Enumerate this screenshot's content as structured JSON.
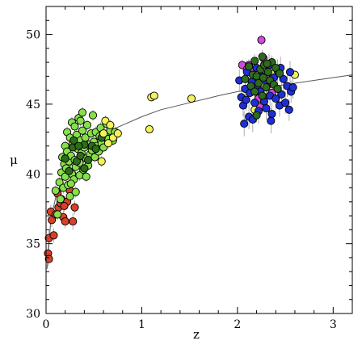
{
  "chart_data": {
    "type": "scatter",
    "title": "",
    "xlabel": "z",
    "ylabel": "μ",
    "xlim": [
      0,
      3.2
    ],
    "ylim": [
      30,
      52
    ],
    "xticks": [
      0,
      1,
      2,
      3
    ],
    "yticks": [
      30,
      35,
      40,
      45,
      50
    ],
    "grid": false,
    "colors": {
      "red": "#d9402a",
      "green": "#86e04a",
      "darkgreen": "#2e6b1a",
      "yellow": "#f2f25a",
      "blue": "#1f2fd6",
      "magenta": "#d14ae0",
      "errorbar": "#9a9a9a",
      "curve": "#555555"
    },
    "curve": {
      "type": "distance-modulus model",
      "x": [
        0.01,
        0.05,
        0.1,
        0.2,
        0.3,
        0.4,
        0.5,
        0.6,
        0.7,
        0.8,
        1.0,
        1.2,
        1.5,
        1.8,
        2.0,
        2.2,
        2.5,
        2.8,
        3.2
      ],
      "y": [
        33.2,
        36.7,
        38.3,
        40.0,
        41.0,
        41.7,
        42.3,
        42.8,
        43.2,
        43.5,
        44.1,
        44.6,
        45.1,
        45.6,
        45.9,
        46.1,
        46.4,
        46.7,
        47.1
      ]
    },
    "series": [
      {
        "color_key": "red",
        "points": [
          [
            0.02,
            34.3,
            0.6
          ],
          [
            0.03,
            33.9,
            0.5
          ],
          [
            0.03,
            35.4,
            0.6
          ],
          [
            0.05,
            37.3,
            0.5
          ],
          [
            0.06,
            36.7,
            0.5
          ],
          [
            0.08,
            35.6,
            0.5
          ],
          [
            0.1,
            37.1,
            0.5
          ],
          [
            0.12,
            38.6,
            0.4
          ],
          [
            0.13,
            37.6,
            0.5
          ],
          [
            0.15,
            37.9,
            0.5
          ],
          [
            0.16,
            38.2,
            0.4
          ],
          [
            0.18,
            36.9,
            0.5
          ],
          [
            0.2,
            36.6,
            0.5
          ],
          [
            0.22,
            38.0,
            0.4
          ],
          [
            0.25,
            38.8,
            0.4
          ],
          [
            0.28,
            36.6,
            0.6
          ],
          [
            0.3,
            37.6,
            0.5
          ],
          [
            0.19,
            37.7,
            0.4
          ]
        ]
      },
      {
        "color_key": "green",
        "points": [
          [
            0.1,
            38.8,
            0.4
          ],
          [
            0.12,
            37.1,
            0.4
          ],
          [
            0.14,
            39.4,
            0.4
          ],
          [
            0.15,
            38.2,
            0.4
          ],
          [
            0.16,
            40.1,
            0.4
          ],
          [
            0.17,
            41.2,
            0.4
          ],
          [
            0.18,
            39.0,
            0.4
          ],
          [
            0.19,
            40.7,
            0.4
          ],
          [
            0.2,
            42.0,
            0.4
          ],
          [
            0.2,
            39.8,
            0.4
          ],
          [
            0.21,
            40.4,
            0.4
          ],
          [
            0.22,
            41.6,
            0.4
          ],
          [
            0.22,
            43.0,
            0.4
          ],
          [
            0.23,
            39.2,
            0.4
          ],
          [
            0.24,
            40.9,
            0.4
          ],
          [
            0.25,
            42.6,
            0.4
          ],
          [
            0.25,
            38.4,
            0.4
          ],
          [
            0.26,
            41.3,
            0.4
          ],
          [
            0.27,
            43.7,
            0.4
          ],
          [
            0.27,
            40.0,
            0.4
          ],
          [
            0.28,
            42.2,
            0.4
          ],
          [
            0.29,
            39.6,
            0.4
          ],
          [
            0.3,
            41.0,
            0.4
          ],
          [
            0.3,
            43.4,
            0.4
          ],
          [
            0.31,
            40.5,
            0.4
          ],
          [
            0.32,
            42.8,
            0.4
          ],
          [
            0.33,
            41.8,
            0.4
          ],
          [
            0.34,
            44.0,
            0.4
          ],
          [
            0.35,
            40.8,
            0.4
          ],
          [
            0.35,
            39.9,
            0.4
          ],
          [
            0.36,
            42.4,
            0.4
          ],
          [
            0.37,
            41.5,
            0.4
          ],
          [
            0.38,
            43.1,
            0.4
          ],
          [
            0.38,
            44.4,
            0.4
          ],
          [
            0.39,
            40.3,
            0.4
          ],
          [
            0.4,
            41.9,
            0.4
          ],
          [
            0.41,
            42.6,
            0.4
          ],
          [
            0.42,
            41.1,
            0.4
          ],
          [
            0.43,
            43.5,
            0.4
          ],
          [
            0.44,
            40.6,
            0.4
          ],
          [
            0.45,
            42.1,
            0.4
          ],
          [
            0.46,
            41.4,
            0.4
          ],
          [
            0.47,
            42.9,
            0.4
          ],
          [
            0.48,
            41.7,
            0.4
          ],
          [
            0.49,
            44.2,
            0.4
          ],
          [
            0.5,
            42.3,
            0.4
          ],
          [
            0.51,
            41.2,
            0.4
          ],
          [
            0.52,
            43.0,
            0.4
          ],
          [
            0.53,
            42.0,
            0.4
          ],
          [
            0.55,
            41.6,
            0.4
          ],
          [
            0.56,
            42.7,
            0.4
          ],
          [
            0.57,
            43.3,
            0.4
          ],
          [
            0.58,
            42.2,
            0.4
          ],
          [
            0.6,
            41.9,
            0.4
          ],
          [
            0.62,
            42.8,
            0.4
          ],
          [
            0.63,
            43.6,
            0.4
          ],
          [
            0.65,
            42.5,
            0.4
          ],
          [
            0.67,
            43.1,
            0.4
          ],
          [
            0.7,
            42.4,
            0.4
          ],
          [
            0.72,
            43.0,
            0.4
          ],
          [
            0.36,
            43.8,
            0.4
          ],
          [
            0.31,
            38.7,
            0.4
          ],
          [
            0.42,
            39.8,
            0.4
          ],
          [
            0.26,
            39.3,
            0.4
          ]
        ]
      },
      {
        "color_key": "darkgreen",
        "points": [
          [
            0.2,
            41.1,
            0.3
          ],
          [
            0.24,
            40.2,
            0.3
          ],
          [
            0.28,
            41.9,
            0.3
          ],
          [
            0.32,
            40.9,
            0.3
          ],
          [
            0.36,
            41.3,
            0.3
          ],
          [
            0.4,
            42.1,
            0.3
          ],
          [
            0.44,
            41.0,
            0.3
          ],
          [
            0.48,
            42.0,
            0.3
          ],
          [
            0.52,
            41.8,
            0.3
          ],
          [
            0.58,
            42.6,
            0.3
          ],
          [
            0.29,
            42.4,
            0.3
          ],
          [
            0.4,
            40.4,
            0.3
          ],
          [
            0.34,
            42.0,
            0.3
          ]
        ]
      },
      {
        "color_key": "yellow",
        "points": [
          [
            0.6,
            42.9,
            0.4
          ],
          [
            0.62,
            43.8,
            0.4
          ],
          [
            0.65,
            42.2,
            0.4
          ],
          [
            0.67,
            43.5,
            0.4
          ],
          [
            0.7,
            42.6,
            0.4
          ],
          [
            0.75,
            42.9,
            0.4
          ],
          [
            0.58,
            40.9,
            0.4
          ],
          [
            1.08,
            43.2,
            0.3
          ],
          [
            1.1,
            45.5,
            0.3
          ],
          [
            1.13,
            45.6,
            0.3
          ],
          [
            1.52,
            45.4,
            0.3
          ],
          [
            2.18,
            44.6,
            0.3
          ],
          [
            2.38,
            47.2,
            0.3
          ],
          [
            2.6,
            47.1,
            0.3
          ],
          [
            2.25,
            46.3,
            0.3
          ]
        ]
      },
      {
        "color_key": "magenta",
        "points": [
          [
            2.05,
            47.8,
            0.4
          ],
          [
            2.1,
            47.5,
            0.4
          ],
          [
            2.15,
            47.3,
            0.4
          ],
          [
            2.25,
            49.6,
            0.4
          ],
          [
            2.3,
            46.9,
            0.4
          ],
          [
            2.32,
            46.4,
            0.4
          ],
          [
            2.22,
            45.4,
            0.4
          ],
          [
            2.24,
            44.8,
            0.4
          ],
          [
            2.18,
            47.0,
            0.4
          ],
          [
            2.27,
            48.3,
            0.4
          ],
          [
            2.12,
            47.8,
            0.4
          ],
          [
            2.36,
            45.8,
            0.4
          ]
        ]
      },
      {
        "color_key": "blue",
        "points": [
          [
            2.02,
            46.7,
            0.8
          ],
          [
            2.04,
            45.5,
            0.8
          ],
          [
            2.06,
            44.9,
            0.8
          ],
          [
            2.07,
            43.6,
            0.9
          ],
          [
            2.08,
            46.1,
            0.8
          ],
          [
            2.1,
            47.3,
            0.8
          ],
          [
            2.12,
            44.1,
            0.9
          ],
          [
            2.13,
            45.8,
            0.8
          ],
          [
            2.15,
            46.6,
            0.8
          ],
          [
            2.16,
            43.9,
            0.9
          ],
          [
            2.18,
            45.1,
            0.8
          ],
          [
            2.2,
            47.6,
            0.8
          ],
          [
            2.21,
            46.2,
            0.8
          ],
          [
            2.22,
            44.5,
            0.9
          ],
          [
            2.24,
            45.9,
            0.8
          ],
          [
            2.26,
            47.0,
            0.8
          ],
          [
            2.28,
            45.2,
            0.8
          ],
          [
            2.3,
            44.7,
            0.8
          ],
          [
            2.31,
            46.5,
            0.8
          ],
          [
            2.33,
            47.8,
            0.8
          ],
          [
            2.34,
            45.6,
            0.8
          ],
          [
            2.36,
            44.3,
            0.8
          ],
          [
            2.38,
            46.9,
            0.8
          ],
          [
            2.4,
            45.4,
            0.8
          ],
          [
            2.42,
            47.4,
            0.8
          ],
          [
            2.44,
            44.9,
            0.8
          ],
          [
            2.46,
            45.7,
            0.8
          ],
          [
            2.48,
            46.8,
            0.8
          ],
          [
            2.5,
            45.1,
            0.8
          ],
          [
            2.52,
            46.3,
            0.8
          ],
          [
            2.54,
            44.6,
            0.8
          ],
          [
            2.56,
            45.9,
            0.8
          ],
          [
            2.58,
            46.2,
            0.8
          ],
          [
            2.35,
            43.8,
            0.9
          ],
          [
            2.45,
            47.6,
            0.8
          ],
          [
            2.09,
            45.3,
            0.8
          ],
          [
            2.55,
            47.3,
            0.8
          ]
        ]
      },
      {
        "color_key": "darkgreen",
        "points": [
          [
            2.08,
            46.8,
            0.5
          ],
          [
            2.12,
            47.7,
            0.5
          ],
          [
            2.14,
            46.3,
            0.5
          ],
          [
            2.16,
            47.1,
            0.5
          ],
          [
            2.18,
            45.9,
            0.5
          ],
          [
            2.2,
            47.0,
            0.5
          ],
          [
            2.22,
            46.5,
            0.5
          ],
          [
            2.24,
            47.5,
            0.5
          ],
          [
            2.26,
            48.4,
            0.5
          ],
          [
            2.27,
            46.9,
            0.5
          ],
          [
            2.28,
            47.8,
            0.5
          ],
          [
            2.3,
            46.2,
            0.5
          ],
          [
            2.32,
            47.3,
            0.5
          ],
          [
            2.34,
            46.7,
            0.5
          ],
          [
            2.36,
            48.0,
            0.5
          ],
          [
            2.38,
            46.4,
            0.5
          ],
          [
            2.4,
            47.6,
            0.5
          ],
          [
            2.42,
            46.1,
            0.5
          ],
          [
            2.44,
            47.2,
            0.5
          ],
          [
            2.2,
            44.2,
            0.5
          ],
          [
            2.26,
            45.6,
            0.5
          ],
          [
            2.18,
            48.1,
            0.5
          ],
          [
            2.31,
            47.9,
            0.5
          ]
        ]
      }
    ]
  }
}
